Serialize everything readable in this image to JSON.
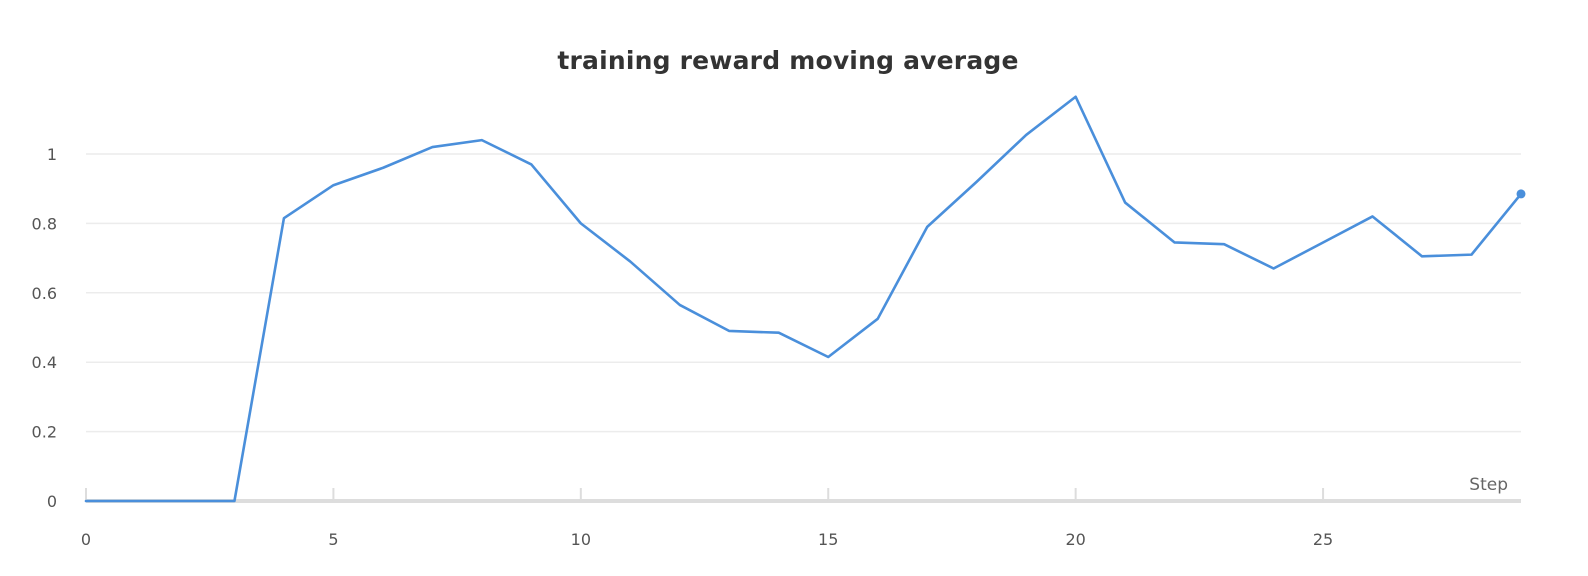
{
  "chart_data": {
    "type": "line",
    "title": "training reward moving average",
    "xlabel": "Step",
    "ylabel": "",
    "xlim": [
      0,
      29
    ],
    "ylim": [
      0,
      1.17
    ],
    "x_ticks": [
      0,
      5,
      10,
      15,
      20,
      25
    ],
    "y_ticks": [
      0,
      0.2,
      0.4,
      0.6,
      0.8,
      1
    ],
    "x_tick_labels": [
      "0",
      "5",
      "10",
      "15",
      "20",
      "25"
    ],
    "y_tick_labels": [
      "0",
      "0.2",
      "0.4",
      "0.6",
      "0.8",
      "1"
    ],
    "grid": true,
    "legend": "none",
    "series": [
      {
        "color": "#4a8fdb",
        "x": [
          0,
          1,
          2,
          3,
          4,
          5,
          6,
          7,
          8,
          9,
          10,
          11,
          12,
          13,
          14,
          15,
          16,
          17,
          18,
          19,
          20,
          21,
          22,
          23,
          24,
          25,
          26,
          27,
          28,
          29
        ],
        "y": [
          0,
          0,
          0,
          0,
          0.815,
          0.91,
          0.96,
          1.02,
          1.04,
          0.97,
          0.8,
          0.69,
          0.565,
          0.49,
          0.485,
          0.415,
          0.525,
          0.79,
          0.92,
          1.055,
          1.165,
          0.86,
          0.745,
          0.74,
          0.67,
          0.745,
          0.82,
          0.705,
          0.71,
          0.885
        ]
      }
    ]
  }
}
